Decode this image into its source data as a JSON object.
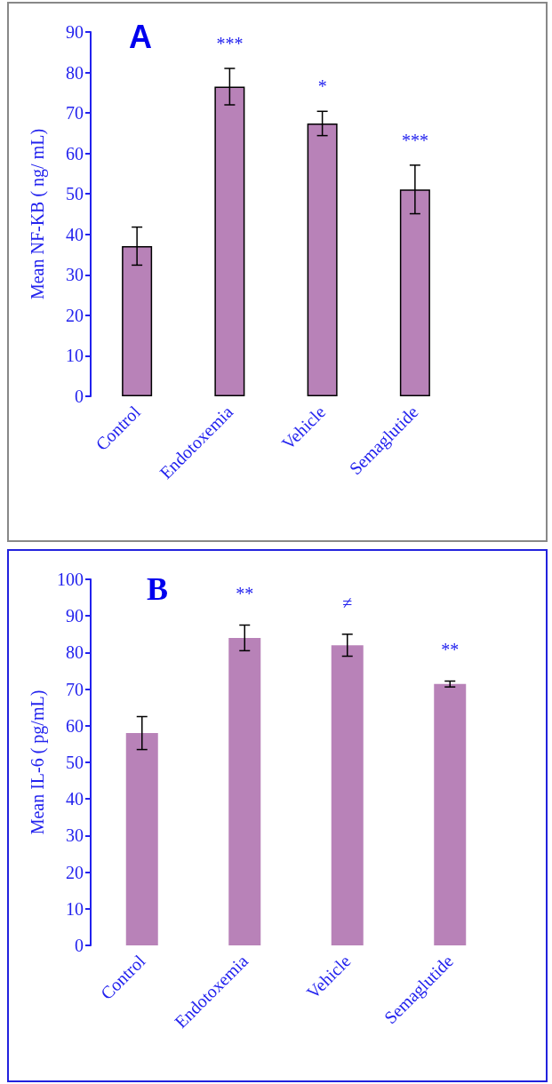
{
  "chart_data": [
    {
      "type": "bar",
      "title": "A",
      "ylabel": "Mean NF-KB ( ng/ mL)",
      "categories": [
        "Control",
        "Endotoxemia",
        "Vehicle",
        "Semaglutide"
      ],
      "values": [
        37.1,
        76.5,
        67.4,
        51.1
      ],
      "errors": [
        4.7,
        4.5,
        3,
        6
      ],
      "color": "#b882b8",
      "ylim": [
        0,
        90
      ],
      "yticks": [
        0,
        10,
        20,
        30,
        40,
        50,
        60,
        70,
        80,
        90
      ],
      "grid": false,
      "annotations": [
        "***",
        "*",
        "***"
      ]
    },
    {
      "type": "bar",
      "title": "B",
      "ylabel": "Mean IL-6 ( pg/mL)",
      "categories": [
        "Control",
        "Endotoxemia",
        "Vehicle",
        "Semaglutide"
      ],
      "values": [
        58,
        84,
        82,
        71.4
      ],
      "errors": [
        4.5,
        3.5,
        3,
        0.8
      ],
      "color": "#b882b8",
      "ylim": [
        0,
        100
      ],
      "yticks": [
        0,
        10,
        20,
        30,
        40,
        50,
        60,
        70,
        80,
        90,
        100
      ],
      "grid": false,
      "annotations": [
        "**",
        "≠",
        "**"
      ]
    }
  ]
}
